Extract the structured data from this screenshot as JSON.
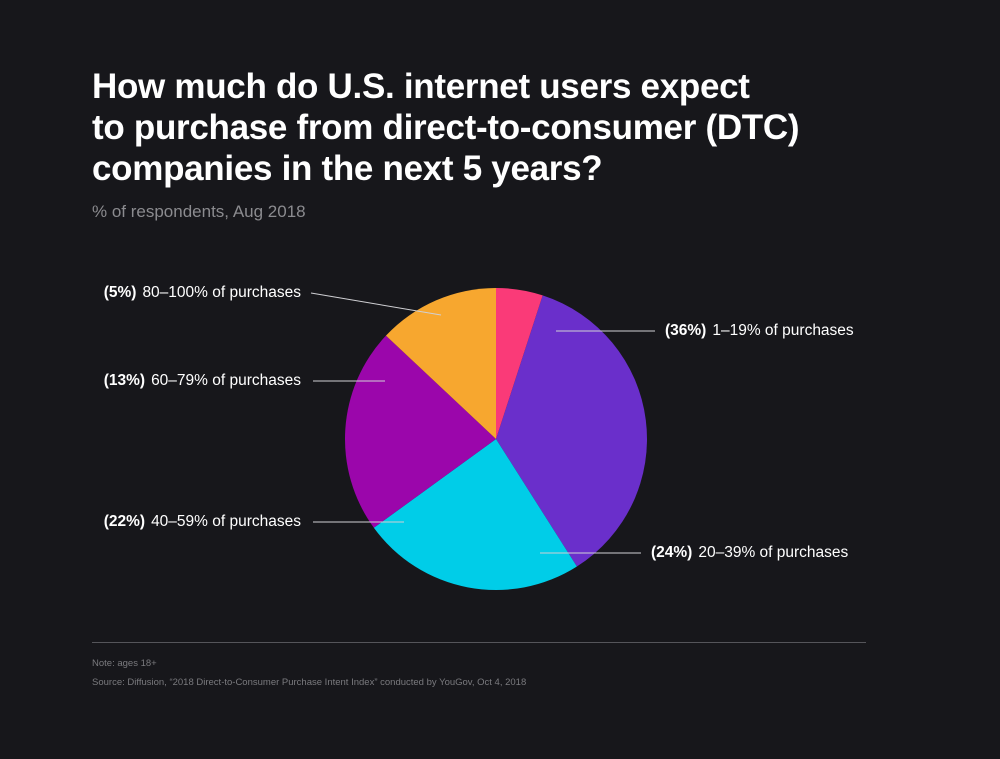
{
  "title_lines": [
    "How much do U.S. internet users expect",
    "to purchase from direct-to-consumer (DTC)",
    "companies in the next 5 years?"
  ],
  "subtitle": "% of respondents, Aug 2018",
  "colors": {
    "background": "#17171b",
    "text": "#ffffff",
    "muted": "#8b8b8f",
    "leader_line": "#d0d0d4"
  },
  "chart_data": {
    "type": "pie",
    "title": "How much do U.S. internet users expect to purchase from direct-to-consumer (DTC) companies in the next 5 years?",
    "subtitle": "% of respondents, Aug 2018",
    "slices": [
      {
        "pct_label": "(36%)",
        "label": "1–19% of purchases",
        "value": 36,
        "color": "#6a2fcb",
        "side": "right"
      },
      {
        "pct_label": "(24%)",
        "label": "20–39% of purchases",
        "value": 24,
        "color": "#00cde8",
        "side": "right"
      },
      {
        "pct_label": "(22%)",
        "label": "40–59% of purchases",
        "value": 22,
        "color": "#9b06ab",
        "side": "left"
      },
      {
        "pct_label": "(13%)",
        "label": "60–79% of purchases",
        "value": 13,
        "color": "#f7a72f",
        "side": "left"
      },
      {
        "pct_label": "(5%)",
        "label": "80–100% of purchases",
        "value": 5,
        "color": "#fa3a78",
        "side": "left"
      }
    ]
  },
  "footer": {
    "note": "Note: ages 18+",
    "source": "Source: Diffusion, “2018 Direct-to-Consumer Purchase Intent Index” conducted by YouGov, Oct 4, 2018"
  }
}
